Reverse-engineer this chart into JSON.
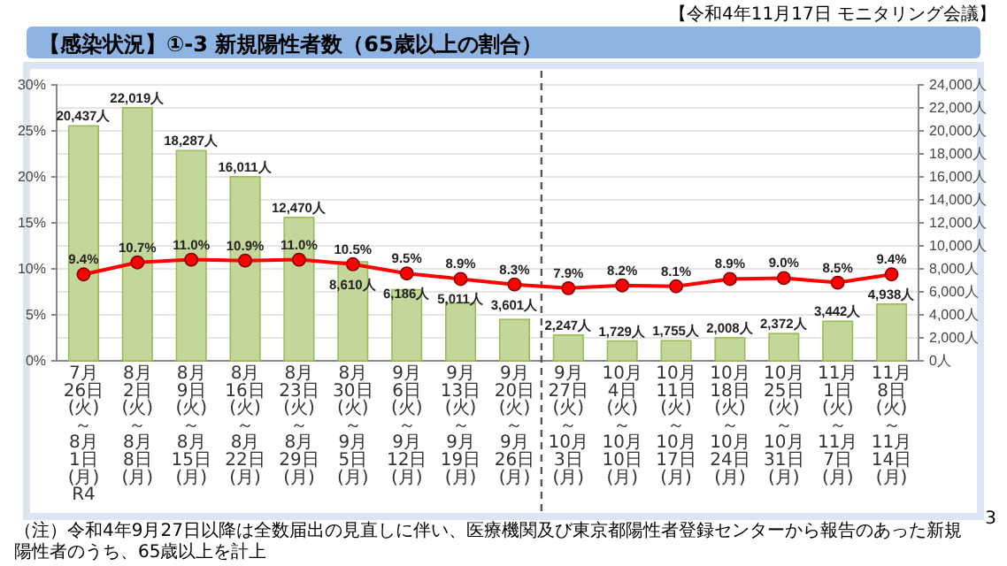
{
  "chart_data": {
    "type": "bar",
    "title": "【感染状況】①-3 新規陽性者数（65歳以上の割合）",
    "annotations": [
      "【令和4年11月17日 モニタリング会議】",
      "（注）令和4年9月27日以降は全数届出の見直しに伴い、医療機関及び東京都陽性者登録センターから報告のあった新規陽性者のうち、65歳以上を計上",
      "3"
    ],
    "categories": [
      "7月26日(火)～8月1日(月)R4",
      "8月2日(火)～8月8日(月)",
      "8月9日(火)～8月15日(月)",
      "8月16日(火)～8月22日(月)",
      "8月23日(火)～8月29日(月)",
      "8月30日(火)～9月5日(月)",
      "9月6日(火)～9月12日(月)",
      "9月13日(火)～9月19日(月)",
      "9月20日(火)～9月26日(月)",
      "9月27日(火)～10月3日(月)",
      "10月4日(火)～10月10日(月)",
      "10月11日(火)～10月17日(月)",
      "10月18日(火)～10月24日(月)",
      "10月25日(火)～10月31日(月)",
      "11月1日(火)～11月7日(月)",
      "11月8日(火)～11月14日(月)"
    ],
    "series": [
      {
        "axis": "y2",
        "color": "#c4d79b",
        "values": [
          20437,
          22019,
          18287,
          16011,
          12470,
          8610,
          6186,
          5011,
          3601,
          2247,
          1729,
          1755,
          2008,
          2372,
          3442,
          4938
        ],
        "value_labels": [
          "20,437人",
          "22,019人",
          "18,287人",
          "16,011人",
          "12,470人",
          "8,610人",
          "6,186人",
          "5,011人",
          "3,601人",
          "2,247人",
          "1,729人",
          "1,755人",
          "2,008人",
          "2,372人",
          "3,442人",
          "4,938人"
        ]
      },
      {
        "type": "line",
        "axis": "y",
        "color": "#ff0000",
        "marker": "circle",
        "values": [
          9.4,
          10.7,
          11.0,
          10.9,
          11.0,
          10.5,
          9.5,
          8.9,
          8.3,
          7.9,
          8.2,
          8.1,
          8.9,
          9.0,
          8.5,
          9.4
        ],
        "value_labels": [
          "9.4%",
          "10.7%",
          "11.0%",
          "10.9%",
          "11.0%",
          "10.5%",
          "9.5%",
          "8.9%",
          "8.3%",
          "7.9%",
          "8.2%",
          "8.1%",
          "8.9%",
          "9.0%",
          "8.5%",
          "9.4%"
        ]
      }
    ],
    "ylim": [
      0,
      30
    ],
    "yticks": [
      {
        "value": 0,
        "label": "0%"
      },
      {
        "value": 5,
        "label": "5%"
      },
      {
        "value": 10,
        "label": "10%"
      },
      {
        "value": 15,
        "label": "15%"
      },
      {
        "value": 20,
        "label": "20%"
      },
      {
        "value": 25,
        "label": "25%"
      },
      {
        "value": 30,
        "label": "30%"
      }
    ],
    "y2lim": [
      0,
      24000
    ],
    "y2ticks": [
      {
        "value": 0,
        "label": "0人"
      },
      {
        "value": 2000,
        "label": "2,000人"
      },
      {
        "value": 4000,
        "label": "4,000人"
      },
      {
        "value": 6000,
        "label": "6,000人"
      },
      {
        "value": 8000,
        "label": "8,000人"
      },
      {
        "value": 10000,
        "label": "10,000人"
      },
      {
        "value": 12000,
        "label": "12,000人"
      },
      {
        "value": 14000,
        "label": "14,000人"
      },
      {
        "value": 16000,
        "label": "16,000人"
      },
      {
        "value": 18000,
        "label": "18,000人"
      },
      {
        "value": 20000,
        "label": "20,000人"
      },
      {
        "value": 22000,
        "label": "22,000人"
      },
      {
        "value": 24000,
        "label": "24,000人"
      }
    ],
    "grid": true,
    "ref_lines": [
      {
        "axis": "x",
        "value": "9月27日(火)～10月3日(月)",
        "line_style": "dashed",
        "color": "#555555"
      }
    ]
  }
}
